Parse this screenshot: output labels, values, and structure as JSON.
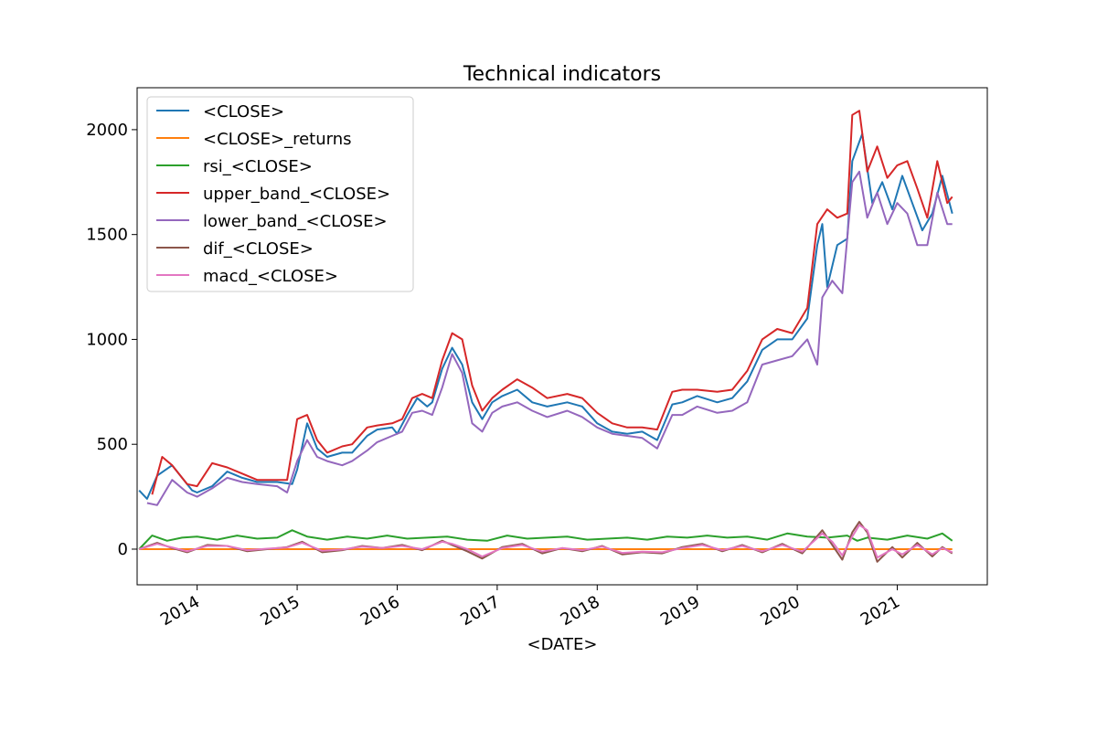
{
  "chart_data": {
    "type": "line",
    "title": "Technical indicators",
    "xlabel": "<DATE>",
    "ylabel": "",
    "xlim": [
      2013.4,
      2021.9
    ],
    "ylim": [
      -170,
      2200
    ],
    "x_ticks": [
      "2014",
      "2015",
      "2016",
      "2017",
      "2018",
      "2019",
      "2020",
      "2021"
    ],
    "y_ticks": [
      0,
      500,
      1000,
      1500,
      2000
    ],
    "grid": false,
    "legend_position": "upper-left",
    "series": [
      {
        "name": "<CLOSE>",
        "color": "#1f77b4",
        "x": [
          2013.42,
          2013.5,
          2013.6,
          2013.75,
          2013.95,
          2014.0,
          2014.15,
          2014.3,
          2014.45,
          2014.6,
          2014.8,
          2014.95,
          2015.0,
          2015.1,
          2015.2,
          2015.3,
          2015.45,
          2015.55,
          2015.7,
          2015.8,
          2015.95,
          2016.0,
          2016.1,
          2016.2,
          2016.3,
          2016.35,
          2016.45,
          2016.55,
          2016.65,
          2016.75,
          2016.85,
          2016.95,
          2017.05,
          2017.2,
          2017.35,
          2017.5,
          2017.7,
          2017.85,
          2018.0,
          2018.15,
          2018.3,
          2018.45,
          2018.6,
          2018.75,
          2018.85,
          2019.0,
          2019.2,
          2019.35,
          2019.5,
          2019.65,
          2019.8,
          2019.95,
          2020.1,
          2020.2,
          2020.25,
          2020.3,
          2020.4,
          2020.5,
          2020.55,
          2020.65,
          2020.75,
          2020.85,
          2020.95,
          2021.05,
          2021.15,
          2021.25,
          2021.35,
          2021.45,
          2021.55
        ],
        "values": [
          280,
          240,
          350,
          400,
          280,
          270,
          300,
          370,
          340,
          320,
          320,
          310,
          380,
          600,
          480,
          440,
          460,
          460,
          540,
          570,
          580,
          550,
          640,
          720,
          680,
          700,
          860,
          960,
          880,
          700,
          620,
          700,
          730,
          760,
          700,
          680,
          700,
          680,
          600,
          560,
          550,
          560,
          520,
          690,
          700,
          730,
          700,
          720,
          800,
          950,
          1000,
          1000,
          1100,
          1450,
          1550,
          1250,
          1450,
          1480,
          1850,
          1980,
          1650,
          1750,
          1620,
          1780,
          1650,
          1520,
          1600,
          1780,
          1600
        ]
      },
      {
        "name": "<CLOSE>_returns",
        "color": "#ff7f0e",
        "x": [
          2013.42,
          2021.55
        ],
        "values": [
          0,
          0
        ]
      },
      {
        "name": "rsi_<CLOSE>",
        "color": "#2ca02c",
        "x": [
          2013.42,
          2013.55,
          2013.7,
          2013.85,
          2014.0,
          2014.2,
          2014.4,
          2014.6,
          2014.8,
          2014.95,
          2015.1,
          2015.3,
          2015.5,
          2015.7,
          2015.9,
          2016.1,
          2016.3,
          2016.5,
          2016.7,
          2016.9,
          2017.1,
          2017.3,
          2017.5,
          2017.7,
          2017.9,
          2018.1,
          2018.3,
          2018.5,
          2018.7,
          2018.9,
          2019.1,
          2019.3,
          2019.5,
          2019.7,
          2019.9,
          2020.1,
          2020.3,
          2020.5,
          2020.6,
          2020.7,
          2020.9,
          2021.1,
          2021.3,
          2021.45,
          2021.55
        ],
        "values": [
          0,
          65,
          40,
          55,
          60,
          45,
          65,
          50,
          55,
          90,
          60,
          45,
          60,
          50,
          65,
          50,
          55,
          60,
          45,
          40,
          65,
          50,
          55,
          60,
          45,
          50,
          55,
          45,
          60,
          55,
          65,
          55,
          60,
          45,
          75,
          60,
          55,
          65,
          40,
          55,
          45,
          65,
          50,
          75,
          40
        ]
      },
      {
        "name": "upper_band_<CLOSE>",
        "color": "#d62728",
        "x": [
          2013.55,
          2013.65,
          2013.75,
          2013.9,
          2014.0,
          2014.15,
          2014.3,
          2014.45,
          2014.6,
          2014.8,
          2014.9,
          2015.0,
          2015.1,
          2015.2,
          2015.3,
          2015.45,
          2015.55,
          2015.7,
          2015.8,
          2015.95,
          2016.05,
          2016.15,
          2016.25,
          2016.35,
          2016.45,
          2016.55,
          2016.65,
          2016.75,
          2016.85,
          2016.95,
          2017.05,
          2017.2,
          2017.35,
          2017.5,
          2017.7,
          2017.85,
          2018.0,
          2018.15,
          2018.3,
          2018.45,
          2018.6,
          2018.75,
          2018.85,
          2019.0,
          2019.2,
          2019.35,
          2019.5,
          2019.65,
          2019.8,
          2019.95,
          2020.1,
          2020.2,
          2020.3,
          2020.4,
          2020.5,
          2020.55,
          2020.62,
          2020.7,
          2020.8,
          2020.9,
          2021.0,
          2021.1,
          2021.2,
          2021.3,
          2021.4,
          2021.5,
          2021.55
        ],
        "values": [
          260,
          440,
          400,
          310,
          300,
          410,
          390,
          360,
          330,
          330,
          330,
          620,
          640,
          520,
          460,
          490,
          500,
          580,
          590,
          600,
          620,
          720,
          740,
          720,
          900,
          1030,
          1000,
          780,
          660,
          720,
          760,
          810,
          770,
          720,
          740,
          720,
          650,
          600,
          580,
          580,
          570,
          750,
          760,
          760,
          750,
          760,
          850,
          1000,
          1050,
          1030,
          1150,
          1550,
          1620,
          1580,
          1600,
          2070,
          2090,
          1800,
          1920,
          1770,
          1830,
          1850,
          1720,
          1580,
          1850,
          1650,
          1680
        ]
      },
      {
        "name": "lower_band_<CLOSE>",
        "color": "#9467bd",
        "x": [
          2013.5,
          2013.6,
          2013.75,
          2013.9,
          2014.0,
          2014.15,
          2014.3,
          2014.45,
          2014.6,
          2014.8,
          2014.9,
          2015.0,
          2015.1,
          2015.2,
          2015.3,
          2015.45,
          2015.55,
          2015.7,
          2015.8,
          2015.95,
          2016.05,
          2016.15,
          2016.25,
          2016.35,
          2016.45,
          2016.55,
          2016.65,
          2016.75,
          2016.85,
          2016.95,
          2017.05,
          2017.2,
          2017.35,
          2017.5,
          2017.7,
          2017.85,
          2018.0,
          2018.15,
          2018.3,
          2018.45,
          2018.6,
          2018.75,
          2018.85,
          2019.0,
          2019.2,
          2019.35,
          2019.5,
          2019.65,
          2019.8,
          2019.95,
          2020.1,
          2020.2,
          2020.25,
          2020.35,
          2020.45,
          2020.55,
          2020.62,
          2020.7,
          2020.8,
          2020.9,
          2021.0,
          2021.1,
          2021.2,
          2021.3,
          2021.4,
          2021.5,
          2021.55
        ],
        "values": [
          220,
          210,
          330,
          270,
          250,
          290,
          340,
          320,
          310,
          300,
          270,
          420,
          520,
          440,
          420,
          400,
          420,
          470,
          510,
          540,
          560,
          650,
          660,
          640,
          770,
          930,
          840,
          600,
          560,
          650,
          680,
          700,
          660,
          630,
          660,
          630,
          580,
          550,
          540,
          530,
          480,
          640,
          640,
          680,
          650,
          660,
          700,
          880,
          900,
          920,
          1000,
          880,
          1200,
          1280,
          1220,
          1750,
          1800,
          1580,
          1700,
          1550,
          1650,
          1600,
          1450,
          1450,
          1700,
          1550,
          1550
        ]
      },
      {
        "name": "dif_<CLOSE>",
        "color": "#8c564b",
        "x": [
          2013.42,
          2013.6,
          2013.75,
          2013.9,
          2014.1,
          2014.3,
          2014.5,
          2014.7,
          2014.9,
          2015.05,
          2015.25,
          2015.45,
          2015.65,
          2015.85,
          2016.05,
          2016.25,
          2016.45,
          2016.55,
          2016.7,
          2016.85,
          2017.05,
          2017.25,
          2017.45,
          2017.65,
          2017.85,
          2018.05,
          2018.25,
          2018.45,
          2018.65,
          2018.85,
          2019.05,
          2019.25,
          2019.45,
          2019.65,
          2019.85,
          2020.05,
          2020.25,
          2020.35,
          2020.45,
          2020.55,
          2020.62,
          2020.7,
          2020.8,
          2020.95,
          2021.05,
          2021.2,
          2021.35,
          2021.45,
          2021.55
        ],
        "values": [
          0,
          30,
          5,
          -15,
          20,
          15,
          -10,
          0,
          10,
          35,
          -15,
          -5,
          15,
          5,
          20,
          -5,
          40,
          20,
          -10,
          -45,
          10,
          25,
          -20,
          5,
          -10,
          15,
          -25,
          -15,
          -20,
          10,
          25,
          -10,
          20,
          -15,
          25,
          -20,
          90,
          20,
          -50,
          80,
          130,
          80,
          -60,
          10,
          -40,
          30,
          -35,
          10,
          -20
        ]
      },
      {
        "name": "macd_<CLOSE>",
        "color": "#e377c2",
        "x": [
          2013.42,
          2013.6,
          2013.75,
          2013.9,
          2014.1,
          2014.3,
          2014.5,
          2014.7,
          2014.9,
          2015.05,
          2015.25,
          2015.45,
          2015.65,
          2015.85,
          2016.05,
          2016.25,
          2016.45,
          2016.55,
          2016.7,
          2016.85,
          2017.05,
          2017.25,
          2017.45,
          2017.65,
          2017.85,
          2018.05,
          2018.25,
          2018.45,
          2018.65,
          2018.85,
          2019.05,
          2019.25,
          2019.45,
          2019.65,
          2019.85,
          2020.05,
          2020.25,
          2020.35,
          2020.45,
          2020.55,
          2020.62,
          2020.7,
          2020.8,
          2020.95,
          2021.05,
          2021.2,
          2021.35,
          2021.45,
          2021.55
        ],
        "values": [
          0,
          25,
          8,
          -10,
          15,
          15,
          -5,
          2,
          8,
          30,
          -8,
          -2,
          12,
          5,
          15,
          0,
          35,
          25,
          0,
          -35,
          5,
          20,
          -12,
          5,
          -5,
          12,
          -18,
          -12,
          -15,
          5,
          20,
          -5,
          15,
          -10,
          20,
          -12,
          75,
          35,
          -30,
          60,
          115,
          90,
          -40,
          0,
          -25,
          20,
          -25,
          5,
          -15
        ]
      }
    ]
  }
}
